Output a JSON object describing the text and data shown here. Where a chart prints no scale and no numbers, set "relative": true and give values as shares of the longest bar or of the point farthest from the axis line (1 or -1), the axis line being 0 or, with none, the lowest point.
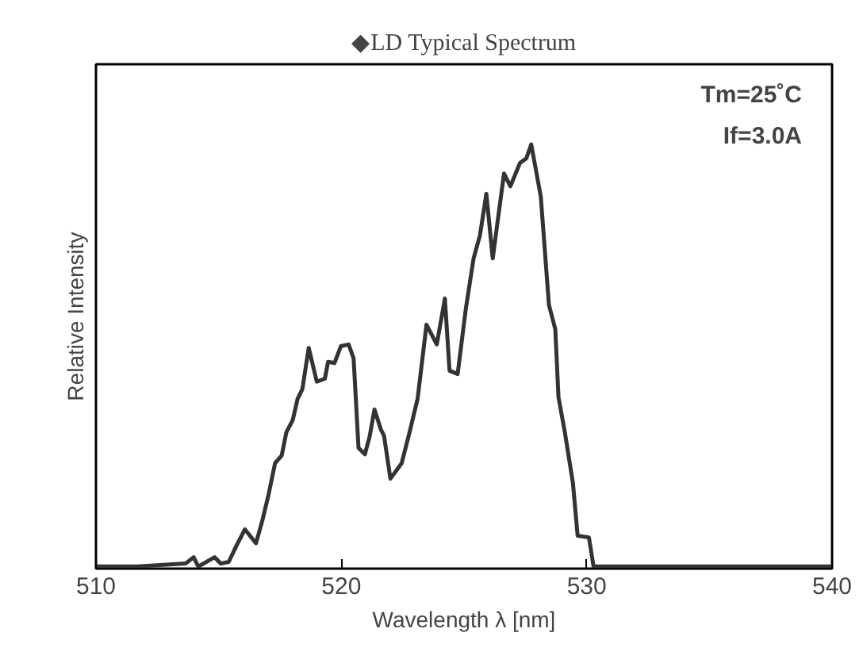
{
  "chart_data": {
    "type": "line",
    "title": "◆LD Typical Spectrum",
    "xlabel": "Wavelength λ [nm]",
    "ylabel": "Relative Intensity",
    "relative": true,
    "xlim": [
      510,
      540
    ],
    "xticks": [
      510,
      520,
      530,
      540
    ],
    "grid": false,
    "marker": "none",
    "line_style": "solid",
    "annotations": [
      "Tm=25˚C",
      "If=3.0A"
    ],
    "series": [
      {
        "color": "#333333",
        "x": [
          510,
          511.7,
          513.65,
          513.98,
          514.17,
          514.83,
          515.09,
          515.41,
          515.74,
          516.07,
          516.52,
          516.78,
          517.04,
          517.3,
          517.57,
          517.76,
          518.02,
          518.22,
          518.41,
          518.67,
          519.0,
          519.33,
          519.46,
          519.72,
          519.98,
          520.3,
          520.5,
          520.7,
          520.96,
          521.15,
          521.35,
          521.61,
          521.74,
          522.0,
          522.46,
          522.78,
          523.11,
          523.47,
          523.89,
          524.22,
          524.41,
          524.74,
          525.07,
          525.39,
          525.65,
          525.91,
          526.17,
          526.37,
          526.63,
          526.89,
          527.28,
          527.54,
          527.74,
          528.13,
          528.46,
          528.72,
          528.85,
          529.11,
          529.44,
          529.63,
          530.09,
          530.28,
          531.91,
          540
        ],
        "values": [
          0,
          0,
          0.007,
          0.022,
          0,
          0.022,
          0.007,
          0.011,
          0.051,
          0.088,
          0.055,
          0.109,
          0.172,
          0.245,
          0.263,
          0.318,
          0.347,
          0.398,
          0.42,
          0.518,
          0.438,
          0.445,
          0.485,
          0.482,
          0.522,
          0.526,
          0.493,
          0.281,
          0.266,
          0.307,
          0.372,
          0.325,
          0.31,
          0.208,
          0.245,
          0.318,
          0.398,
          0.573,
          0.526,
          0.635,
          0.464,
          0.456,
          0.609,
          0.73,
          0.785,
          0.883,
          0.73,
          0.818,
          0.931,
          0.901,
          0.956,
          0.967,
          1.0,
          0.876,
          0.62,
          0.562,
          0.401,
          0.318,
          0.197,
          0.073,
          0.069,
          0,
          0,
          0
        ]
      }
    ]
  }
}
